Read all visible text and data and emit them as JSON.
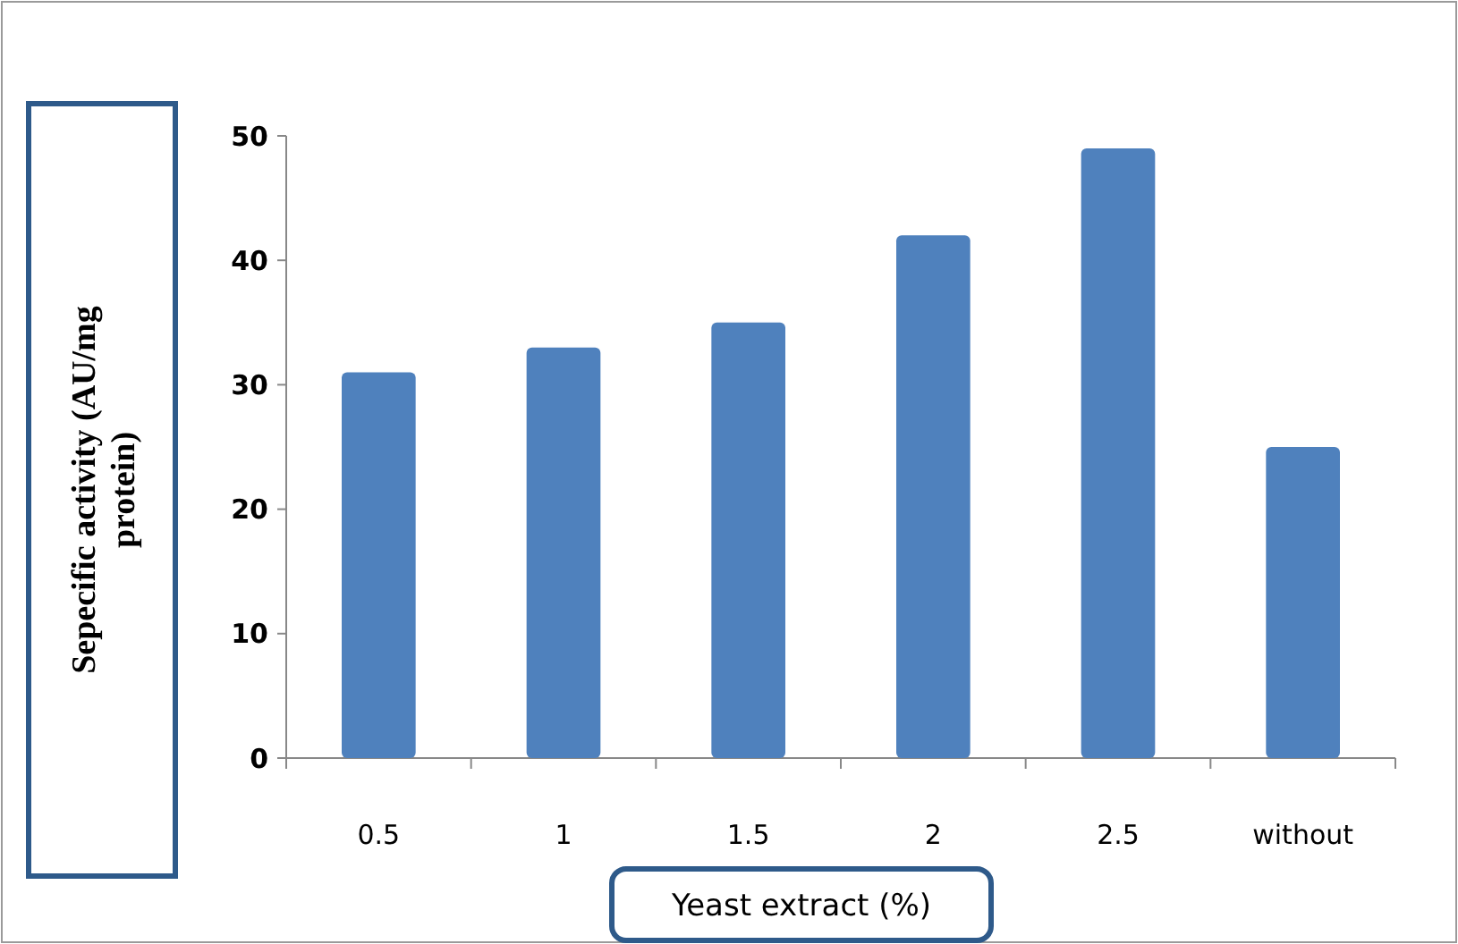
{
  "chart_data": {
    "type": "bar",
    "xlabel": "Yeast extract (%)",
    "ylabel": "Sepecific activity (AU/mg protein)",
    "categories": [
      "0.5",
      "1",
      "1.5",
      "2",
      "2.5",
      "without"
    ],
    "values": [
      31,
      33,
      35,
      42,
      49,
      25
    ],
    "color": "#4f81bd",
    "ylim": [
      0,
      50
    ],
    "yticks": [
      0,
      10,
      20,
      30,
      40,
      50
    ]
  }
}
